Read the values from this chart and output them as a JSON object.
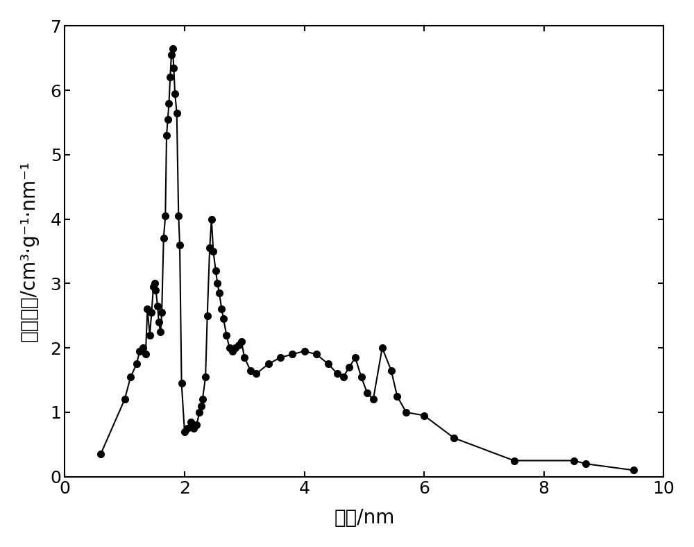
{
  "x": [
    0.6,
    1.0,
    1.1,
    1.2,
    1.25,
    1.3,
    1.35,
    1.38,
    1.42,
    1.45,
    1.48,
    1.5,
    1.52,
    1.55,
    1.57,
    1.6,
    1.62,
    1.65,
    1.68,
    1.7,
    1.72,
    1.74,
    1.76,
    1.78,
    1.8,
    1.82,
    1.84,
    1.87,
    1.9,
    1.92,
    1.95,
    2.0,
    2.05,
    2.1,
    2.15,
    2.2,
    2.25,
    2.28,
    2.3,
    2.35,
    2.38,
    2.42,
    2.45,
    2.48,
    2.52,
    2.55,
    2.58,
    2.62,
    2.65,
    2.7,
    2.75,
    2.8,
    2.85,
    2.9,
    2.95,
    3.0,
    3.1,
    3.2,
    3.4,
    3.6,
    3.8,
    4.0,
    4.2,
    4.4,
    4.55,
    4.65,
    4.75,
    4.85,
    4.95,
    5.05,
    5.15,
    5.3,
    5.45,
    5.55,
    5.7,
    6.0,
    6.5,
    7.5,
    8.5,
    8.7,
    9.5
  ],
  "y": [
    0.35,
    1.2,
    1.55,
    1.75,
    1.95,
    2.0,
    1.9,
    2.6,
    2.2,
    2.55,
    2.95,
    3.0,
    2.9,
    2.65,
    2.4,
    2.25,
    2.55,
    3.7,
    4.05,
    5.3,
    5.55,
    5.8,
    6.2,
    6.55,
    6.65,
    6.35,
    5.95,
    5.65,
    4.05,
    3.6,
    1.45,
    0.7,
    0.75,
    0.85,
    0.75,
    0.8,
    1.0,
    1.1,
    1.2,
    1.55,
    2.5,
    3.55,
    4.0,
    3.5,
    3.2,
    3.0,
    2.85,
    2.6,
    2.45,
    2.2,
    2.0,
    1.95,
    2.0,
    2.05,
    2.1,
    1.85,
    1.65,
    1.6,
    1.75,
    1.85,
    1.9,
    1.95,
    1.9,
    1.75,
    1.6,
    1.55,
    1.7,
    1.85,
    1.55,
    1.3,
    1.2,
    2.0,
    1.65,
    1.25,
    1.0,
    0.95,
    0.6,
    0.25,
    0.25,
    0.2,
    0.1
  ],
  "xlabel": "孔径/nm",
  "ylabel": "体积比率/cm³·g⁻¹·nm⁻¹",
  "xlim": [
    0,
    10
  ],
  "ylim": [
    0,
    7
  ],
  "xticks": [
    0,
    2,
    4,
    6,
    8,
    10
  ],
  "yticks": [
    0,
    1,
    2,
    3,
    4,
    5,
    6,
    7
  ],
  "line_color": "#000000",
  "marker_color": "#000000",
  "marker_size": 7,
  "line_width": 1.5,
  "background_color": "#ffffff",
  "xlabel_fontsize": 20,
  "ylabel_fontsize": 20,
  "tick_fontsize": 18
}
